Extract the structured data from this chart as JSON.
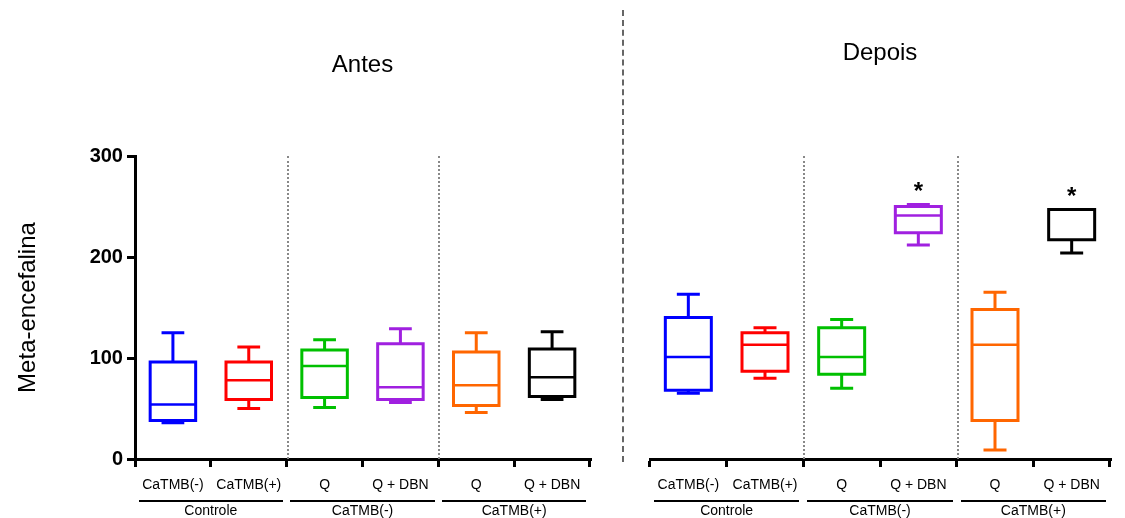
{
  "chart_data": [
    {
      "type": "box",
      "title": "Antes",
      "ylabel": "Meta-encefalina",
      "categories": [
        "CaTMB(-)",
        "CaTMB(+)",
        "Q",
        "Q + DBN",
        "Q",
        "Q + DBN"
      ],
      "colors": [
        "#0000ff",
        "#ff0000",
        "#00c000",
        "#a020e0",
        "#ff6600",
        "#000000"
      ],
      "boxes": [
        {
          "low": 36,
          "q1": 38,
          "median": 54,
          "q3": 96,
          "high": 125
        },
        {
          "low": 50,
          "q1": 59,
          "median": 78,
          "q3": 96,
          "high": 111
        },
        {
          "low": 51,
          "q1": 61,
          "median": 92,
          "q3": 108,
          "high": 118
        },
        {
          "low": 56,
          "q1": 59,
          "median": 71,
          "q3": 114,
          "high": 129
        },
        {
          "low": 46,
          "q1": 53,
          "median": 73,
          "q3": 106,
          "high": 125
        },
        {
          "low": 59,
          "q1": 62,
          "median": 81,
          "q3": 109,
          "high": 126
        }
      ],
      "ylim": [
        0,
        300
      ],
      "yticks": [
        0,
        100,
        200,
        300
      ],
      "grid": false,
      "annotations": [
        "Controle",
        "CaTMB(-)",
        "CaTMB(+)"
      ]
    },
    {
      "type": "box",
      "title": "Depois",
      "categories": [
        "CaTMB(-)",
        "CaTMB(+)",
        "Q",
        "Q + DBN",
        "Q",
        "Q + DBN"
      ],
      "colors": [
        "#0000ff",
        "#ff0000",
        "#00c000",
        "#a020e0",
        "#ff6600",
        "#000000"
      ],
      "boxes": [
        {
          "low": 65,
          "q1": 68,
          "median": 101,
          "q3": 140,
          "high": 163
        },
        {
          "low": 80,
          "q1": 87,
          "median": 113,
          "q3": 125,
          "high": 130
        },
        {
          "low": 70,
          "q1": 84,
          "median": 101,
          "q3": 130,
          "high": 138
        },
        {
          "low": 212,
          "q1": 224,
          "median": 241,
          "q3": 250,
          "high": 252
        },
        {
          "low": 9,
          "q1": 38,
          "median": 113,
          "q3": 148,
          "high": 165
        },
        {
          "low": 204,
          "q1": 217,
          "median": 247,
          "q3": 247,
          "high": 247
        }
      ],
      "ylim": [
        0,
        300
      ],
      "tick_labels": "x",
      "grid": false,
      "annotations": [
        "Controle",
        "CaTMB(-)",
        "CaTMB(+)",
        {
          "text": "*",
          "x": "Q + DBN",
          "y": 252
        },
        "*"
      ]
    }
  ]
}
